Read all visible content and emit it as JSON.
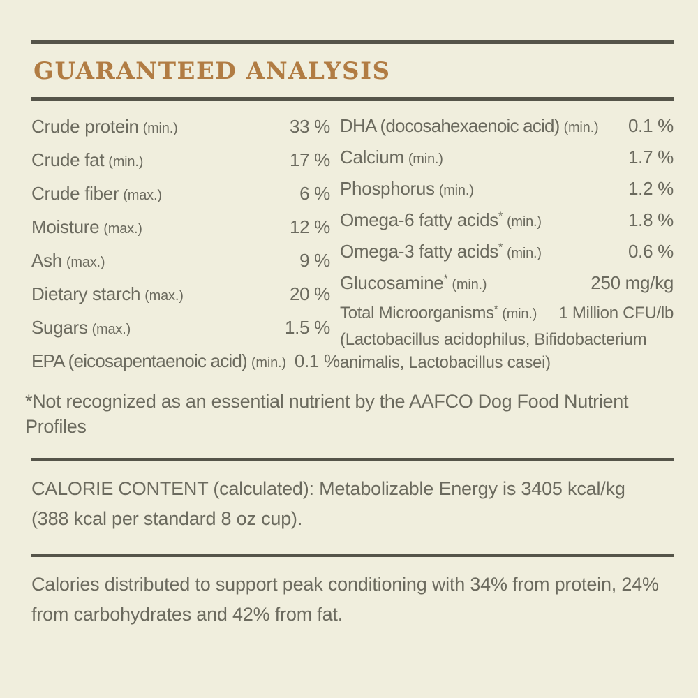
{
  "colors": {
    "background": "#f0eedd",
    "text": "#6b6a5e",
    "accent": "#b17c43",
    "rule": "#555449"
  },
  "title": "GUARANTEED ANALYSIS",
  "analysis": {
    "left_rows": [
      {
        "label": "Crude protein",
        "qualifier": "(min.)",
        "value": "33 %"
      },
      {
        "label": "Crude fat",
        "qualifier": "(min.)",
        "value": "17 %"
      },
      {
        "label": "Crude fiber",
        "qualifier": "(max.)",
        "value": "6 %"
      },
      {
        "label": "Moisture",
        "qualifier": "(max.)",
        "value": "12 %"
      },
      {
        "label": "Ash",
        "qualifier": "(max.)",
        "value": "9 %"
      },
      {
        "label": "Dietary starch",
        "qualifier": "(max.)",
        "value": "20 %"
      },
      {
        "label": "Sugars",
        "qualifier": "(max.)",
        "value": "1.5 %"
      },
      {
        "label": "EPA (eicosapentaenoic acid)",
        "qualifier": "(min.)",
        "value": "0.1 %"
      }
    ],
    "right_rows": [
      {
        "label": "DHA (docosahexaenoic acid)",
        "qualifier": "(min.)",
        "value": "0.1 %"
      },
      {
        "label": "Calcium",
        "qualifier": "(min.)",
        "value": "1.7 %"
      },
      {
        "label": "Phosphorus",
        "qualifier": "(min.)",
        "value": "1.2 %"
      },
      {
        "label": "Omega-6 fatty acids",
        "asterisk": true,
        "qualifier": "(min.)",
        "value": "1.8 %"
      },
      {
        "label": "Omega-3 fatty acids",
        "asterisk": true,
        "qualifier": "(min.)",
        "value": "0.6 %"
      },
      {
        "label": "Glucosamine",
        "asterisk": true,
        "qualifier": "(min.)",
        "value": "250 mg/kg"
      },
      {
        "label": "Total Microorganisms",
        "asterisk": true,
        "qualifier": "(min.)",
        "value": "1 Million CFU/lb",
        "compact": true,
        "note": "(Lactobacillus acidophilus, Bifidobacterium animalis, Lactobacillus casei)"
      }
    ]
  },
  "footnote": "*Not recognized as an essential nutrient by the AAFCO Dog Food Nutrient Profiles",
  "calorie_content": {
    "text": "CALORIE CONTENT (calculated): Metabolizable Energy is 3405 kcal/kg (388 kcal per standard 8 oz cup)."
  },
  "calorie_distribution": {
    "text": "Calories distributed to support peak conditioning with 34% from protein, 24% from carbohydrates and 42% from fat."
  }
}
